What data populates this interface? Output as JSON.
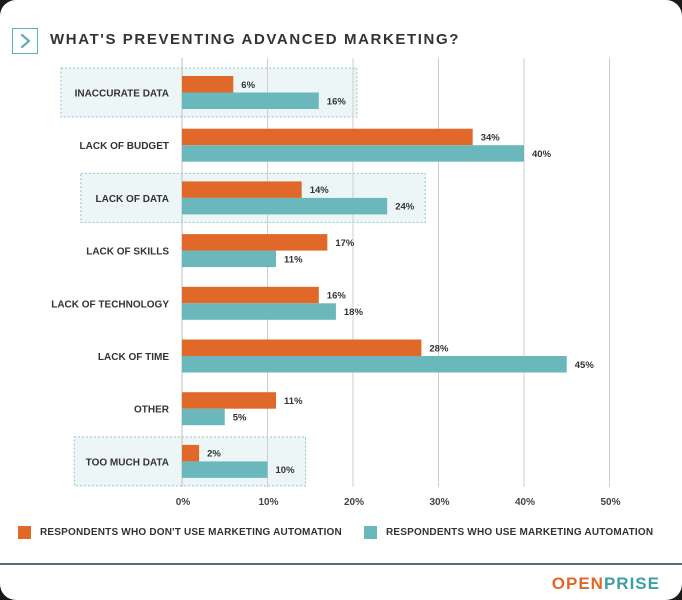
{
  "chart_data": {
    "type": "bar",
    "orientation": "horizontal",
    "title": "WHAT'S PREVENTING ADVANCED MARKETING?",
    "categories": [
      "INACCURATE DATA",
      "LACK OF BUDGET",
      "LACK OF DATA",
      "LACK OF SKILLS",
      "LACK OF TECHNOLOGY",
      "LACK OF TIME",
      "OTHER",
      "TOO MUCH DATA"
    ],
    "series": [
      {
        "name": "RESPONDENTS WHO DON'T USE MARKETING AUTOMATION",
        "color": "#e0692a",
        "values": [
          6,
          34,
          14,
          17,
          16,
          28,
          11,
          2
        ]
      },
      {
        "name": "RESPONDENTS WHO USE MARKETING AUTOMATION",
        "color": "#6ab8bc",
        "values": [
          16,
          40,
          24,
          11,
          18,
          45,
          5,
          10
        ]
      }
    ],
    "xlim": [
      0,
      50
    ],
    "xticks": [
      "0%",
      "10%",
      "20%",
      "30%",
      "40%",
      "50%"
    ],
    "highlighted_categories": [
      "INACCURATE DATA",
      "LACK OF DATA",
      "TOO MUCH DATA"
    ],
    "value_suffix": "%",
    "grid": true,
    "legend_position": "bottom"
  },
  "brand": {
    "part1": "OPEN",
    "part2": "PRISE",
    "color1": "#e0692a",
    "color2": "#3d9fa6"
  },
  "colors": {
    "highlight_fill": "#edf6f7",
    "highlight_border": "#8cc4c8",
    "grid": "#cfcfcf",
    "icon": "#5fb0b4"
  },
  "icons": {
    "header": "chevron-right-icon"
  }
}
